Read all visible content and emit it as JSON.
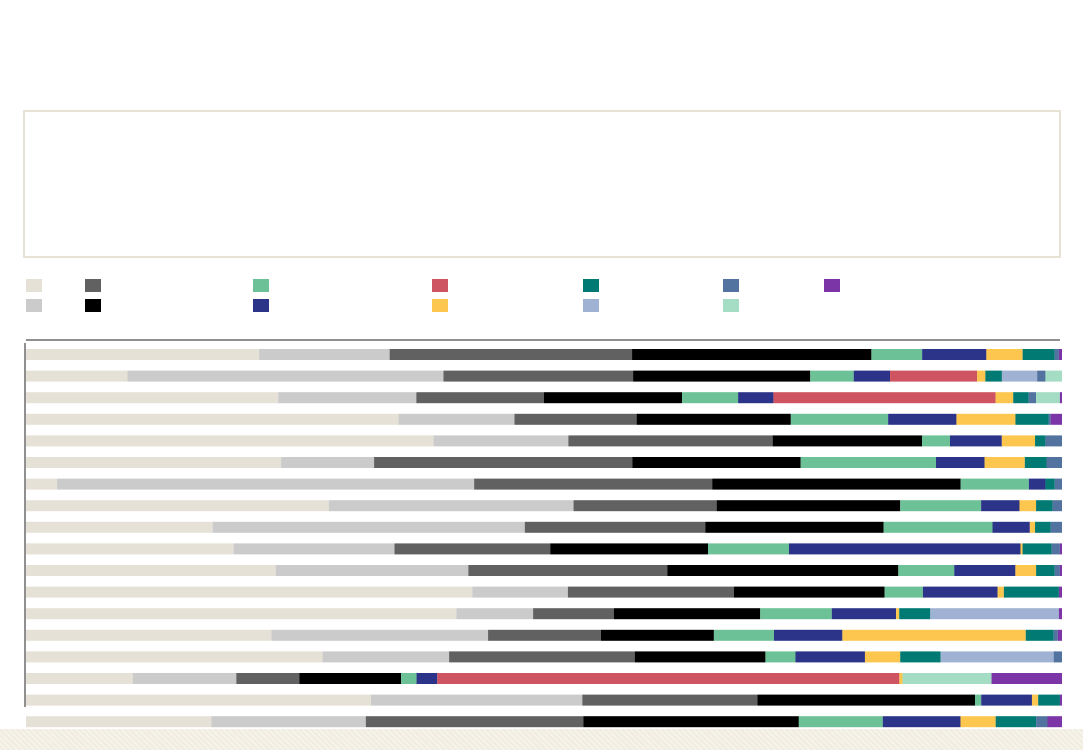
{
  "chart_data": {
    "type": "bar",
    "orientation": "horizontal",
    "stacked": "percent",
    "xlim": [
      0,
      100
    ],
    "legend_placement": "top",
    "series": [
      {
        "color": "#e6e1d6",
        "values": [
          22.5,
          9.8,
          24.3,
          36.0,
          39.3,
          24.7,
          3.0,
          29.2,
          18.0,
          20.0,
          24.1,
          43.0,
          41.5,
          23.7,
          28.6,
          10.3,
          33.3,
          17.9
        ]
      },
      {
        "color": "#cbcbcb",
        "values": [
          12.6,
          30.5,
          13.3,
          11.2,
          13.0,
          9.0,
          40.3,
          23.6,
          30.1,
          15.5,
          18.6,
          9.2,
          7.4,
          20.9,
          12.2,
          10.0,
          20.4,
          14.9
        ]
      },
      {
        "color": "#616161",
        "values": [
          23.4,
          18.3,
          12.3,
          11.8,
          19.7,
          25.0,
          23.0,
          13.8,
          17.4,
          15.0,
          19.2,
          16.0,
          7.8,
          10.9,
          17.9,
          6.1,
          16.9,
          21.0
        ]
      },
      {
        "color": "#000000",
        "values": [
          23.1,
          17.1,
          13.3,
          14.9,
          14.4,
          16.3,
          24.0,
          17.7,
          17.2,
          15.2,
          22.3,
          14.5,
          14.1,
          10.9,
          12.6,
          9.8,
          21.0,
          20.8
        ]
      },
      {
        "color": "#6cc196",
        "values": [
          4.9,
          4.2,
          5.4,
          9.4,
          2.7,
          13.1,
          6.6,
          7.8,
          10.5,
          7.8,
          5.4,
          3.7,
          6.9,
          5.8,
          2.9,
          1.5,
          0.6,
          8.1
        ]
      },
      {
        "color": "#2b3488",
        "values": [
          6.2,
          3.5,
          3.4,
          6.6,
          5.0,
          4.7,
          1.6,
          3.7,
          3.6,
          22.3,
          5.9,
          7.2,
          6.2,
          6.6,
          6.7,
          2.0,
          4.9,
          7.5
        ]
      },
      {
        "color": "#cf5461",
        "values": [
          0,
          8.4,
          21.4,
          0,
          0,
          0,
          0,
          0,
          0,
          0,
          0,
          0,
          0,
          0,
          0,
          44.6,
          0,
          0
        ]
      },
      {
        "color": "#fdc64e",
        "values": [
          3.5,
          0.8,
          1.7,
          5.7,
          3.2,
          3.9,
          0,
          1.6,
          0.5,
          0.2,
          2.0,
          0.6,
          0.3,
          17.7,
          3.4,
          0.3,
          0.6,
          3.4
        ]
      },
      {
        "color": "#007a72",
        "values": [
          3.1,
          1.6,
          1.5,
          3.2,
          1.0,
          2.1,
          0.9,
          1.6,
          1.5,
          2.8,
          1.8,
          5.3,
          3.0,
          2.7,
          3.9,
          0,
          2.1,
          3.9
        ]
      },
      {
        "color": "#9fb2d3",
        "values": [
          0,
          3.4,
          0,
          0,
          0,
          0,
          0,
          0,
          0,
          0,
          0,
          0,
          12.4,
          0,
          10.9,
          0,
          0,
          0
        ]
      },
      {
        "color": "#52739f",
        "values": [
          0.4,
          0.8,
          0.7,
          0.2,
          1.6,
          1.5,
          0.7,
          0.9,
          1.1,
          0.8,
          0.5,
          0,
          0,
          0.4,
          0.8,
          0,
          0,
          1.1
        ]
      },
      {
        "color": "#a4dcc4",
        "values": [
          0,
          1.6,
          2.3,
          0,
          0,
          0,
          0,
          0,
          0,
          0,
          0,
          0,
          0,
          0,
          0,
          8.6,
          0,
          0
        ]
      },
      {
        "color": "#7b35a6",
        "values": [
          0.3,
          0,
          0.2,
          1.1,
          0,
          0,
          0,
          0,
          0,
          0.2,
          0.2,
          0.3,
          0.3,
          0.4,
          0,
          6.8,
          0.2,
          1.4
        ]
      }
    ]
  }
}
